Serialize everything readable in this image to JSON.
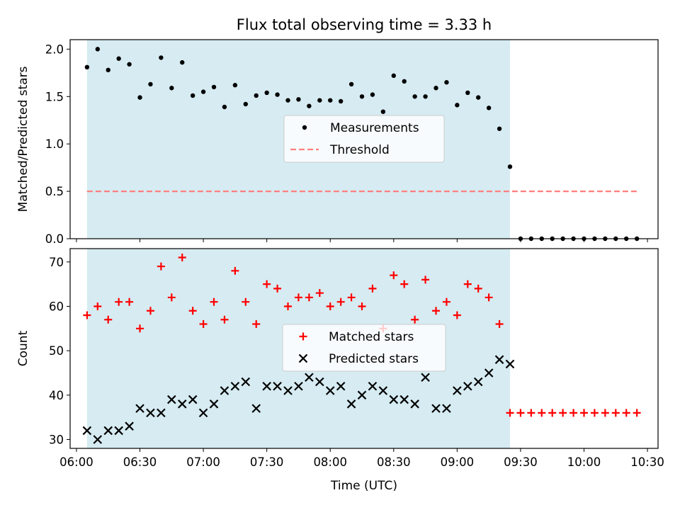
{
  "chart_data": [
    {
      "type": "scatter",
      "title": "Flux total observing time = 3.33 h",
      "xlabel": "",
      "ylabel": "Matched/Predicted stars",
      "ylim": [
        0,
        2.1
      ],
      "yticks": [
        "0.0",
        "0.5",
        "1.0",
        "1.5",
        "2.0"
      ],
      "xlim": [
        "05:57",
        "10:35"
      ],
      "shaded_region": {
        "x": [
          "06:05",
          "09:25"
        ],
        "color": "#add8e6"
      },
      "grid": false,
      "legend_position": "center",
      "series": [
        {
          "name": "Measurements",
          "style": "dot",
          "color": "#000000",
          "x": [
            "06:05",
            "06:10",
            "06:15",
            "06:20",
            "06:25",
            "06:30",
            "06:35",
            "06:40",
            "06:45",
            "06:50",
            "06:55",
            "07:00",
            "07:05",
            "07:10",
            "07:15",
            "07:20",
            "07:25",
            "07:30",
            "07:35",
            "07:40",
            "07:45",
            "07:50",
            "07:55",
            "08:00",
            "08:05",
            "08:10",
            "08:15",
            "08:20",
            "08:25",
            "08:30",
            "08:35",
            "08:40",
            "08:45",
            "08:50",
            "08:55",
            "09:00",
            "09:05",
            "09:10",
            "09:15",
            "09:20",
            "09:25",
            "09:30",
            "09:35",
            "09:40",
            "09:45",
            "09:50",
            "09:55",
            "10:00",
            "10:05",
            "10:10",
            "10:15",
            "10:20",
            "10:25"
          ],
          "y": [
            1.81,
            2.0,
            1.78,
            1.9,
            1.84,
            1.49,
            1.63,
            1.91,
            1.59,
            1.86,
            1.51,
            1.55,
            1.6,
            1.39,
            1.62,
            1.42,
            1.51,
            1.54,
            1.52,
            1.46,
            1.47,
            1.4,
            1.46,
            1.46,
            1.45,
            1.63,
            1.5,
            1.52,
            1.34,
            1.72,
            1.66,
            1.5,
            1.5,
            1.59,
            1.65,
            1.41,
            1.54,
            1.49,
            1.38,
            1.16,
            0.76,
            0,
            0,
            0,
            0,
            0,
            0,
            0,
            0,
            0,
            0,
            0,
            0
          ]
        },
        {
          "name": "Threshold",
          "style": "dashed-line",
          "color": "#ff7f7f",
          "x": [
            "06:05",
            "10:25"
          ],
          "y": [
            0.5,
            0.5
          ]
        }
      ]
    },
    {
      "type": "scatter",
      "title": "",
      "xlabel": "Time (UTC)",
      "ylabel": "Count",
      "ylim": [
        28,
        73
      ],
      "yticks": [
        "30",
        "40",
        "50",
        "60",
        "70"
      ],
      "xlim": [
        "05:57",
        "10:35"
      ],
      "xticks": [
        "06:00",
        "06:30",
        "07:00",
        "07:30",
        "08:00",
        "08:30",
        "09:00",
        "09:30",
        "10:00",
        "10:30"
      ],
      "shaded_region": {
        "x": [
          "06:05",
          "09:25"
        ],
        "color": "#add8e6"
      },
      "grid": false,
      "legend_position": "center",
      "series": [
        {
          "name": "Matched stars",
          "style": "plus",
          "color": "#ff0000",
          "x": [
            "06:05",
            "06:10",
            "06:15",
            "06:20",
            "06:25",
            "06:30",
            "06:35",
            "06:40",
            "06:45",
            "06:50",
            "06:55",
            "07:00",
            "07:05",
            "07:10",
            "07:15",
            "07:20",
            "07:25",
            "07:30",
            "07:35",
            "07:40",
            "07:45",
            "07:50",
            "07:55",
            "08:00",
            "08:05",
            "08:10",
            "08:15",
            "08:20",
            "08:25",
            "08:30",
            "08:35",
            "08:40",
            "08:45",
            "08:50",
            "08:55",
            "09:00",
            "09:05",
            "09:10",
            "09:15",
            "09:20",
            "09:25",
            "09:30",
            "09:35",
            "09:40",
            "09:45",
            "09:50",
            "09:55",
            "10:00",
            "10:05",
            "10:10",
            "10:15",
            "10:20",
            "10:25"
          ],
          "y": [
            58,
            60,
            57,
            61,
            61,
            55,
            59,
            69,
            62,
            71,
            59,
            56,
            61,
            57,
            68,
            61,
            56,
            65,
            64,
            60,
            62,
            62,
            63,
            60,
            61,
            62,
            60,
            64,
            55,
            67,
            65,
            57,
            66,
            59,
            61,
            58,
            65,
            64,
            62,
            56,
            36,
            36,
            36,
            36,
            36,
            36,
            36,
            36,
            36,
            36,
            36,
            36,
            36
          ]
        },
        {
          "name": "Predicted stars",
          "style": "x",
          "color": "#000000",
          "x": [
            "06:05",
            "06:10",
            "06:15",
            "06:20",
            "06:25",
            "06:30",
            "06:35",
            "06:40",
            "06:45",
            "06:50",
            "06:55",
            "07:00",
            "07:05",
            "07:10",
            "07:15",
            "07:20",
            "07:25",
            "07:30",
            "07:35",
            "07:40",
            "07:45",
            "07:50",
            "07:55",
            "08:00",
            "08:05",
            "08:10",
            "08:15",
            "08:20",
            "08:25",
            "08:30",
            "08:35",
            "08:40",
            "08:45",
            "08:50",
            "08:55",
            "09:00",
            "09:05",
            "09:10",
            "09:15",
            "09:20",
            "09:25"
          ],
          "y": [
            32,
            30,
            32,
            32,
            33,
            37,
            36,
            36,
            39,
            38,
            39,
            36,
            38,
            41,
            42,
            43,
            37,
            42,
            42,
            41,
            42,
            44,
            43,
            41,
            42,
            38,
            40,
            42,
            41,
            39,
            39,
            38,
            44,
            37,
            37,
            41,
            42,
            43,
            45,
            48,
            47
          ]
        }
      ]
    }
  ]
}
